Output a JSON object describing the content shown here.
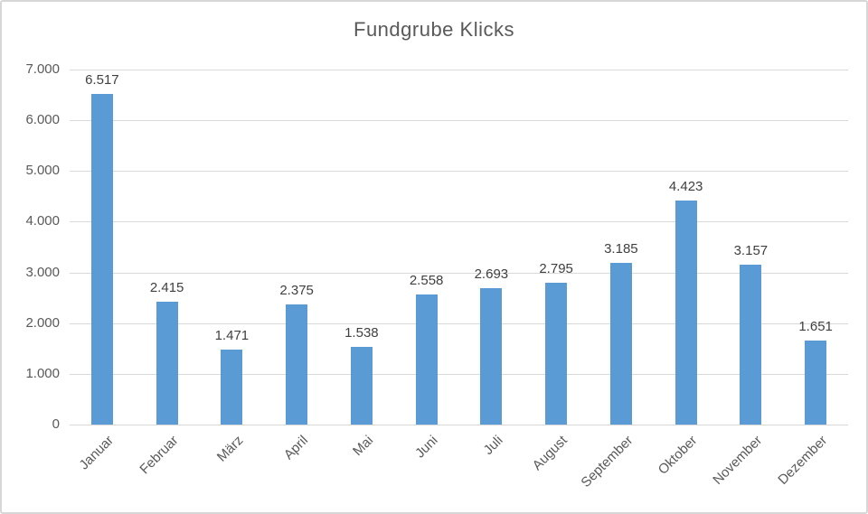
{
  "chart_data": {
    "type": "bar",
    "title": "Fundgrube Klicks",
    "categories": [
      "Januar",
      "Februar",
      "März",
      "April",
      "Mai",
      "Juni",
      "Juli",
      "August",
      "September",
      "Oktober",
      "November",
      "Dezember"
    ],
    "values": [
      6517,
      2415,
      1471,
      2375,
      1538,
      2558,
      2693,
      2795,
      3185,
      4423,
      3157,
      1651
    ],
    "data_labels": [
      "6.517",
      "2.415",
      "1.471",
      "2.375",
      "1.538",
      "2.558",
      "2.693",
      "2.795",
      "3.185",
      "4.423",
      "3.157",
      "1.651"
    ],
    "xlabel": "",
    "ylabel": "",
    "ylim": [
      0,
      7000
    ],
    "ytick_interval": 1000,
    "ytick_labels": [
      "0",
      "1.000",
      "2.000",
      "3.000",
      "4.000",
      "5.000",
      "6.000",
      "7.000"
    ],
    "grid": true,
    "legend_position": "none",
    "bar_color": "#5b9bd5",
    "gridline_color": "#d9d9d9",
    "axis_label_color": "#595959",
    "data_label_color": "#404040",
    "title_color": "#595959"
  }
}
